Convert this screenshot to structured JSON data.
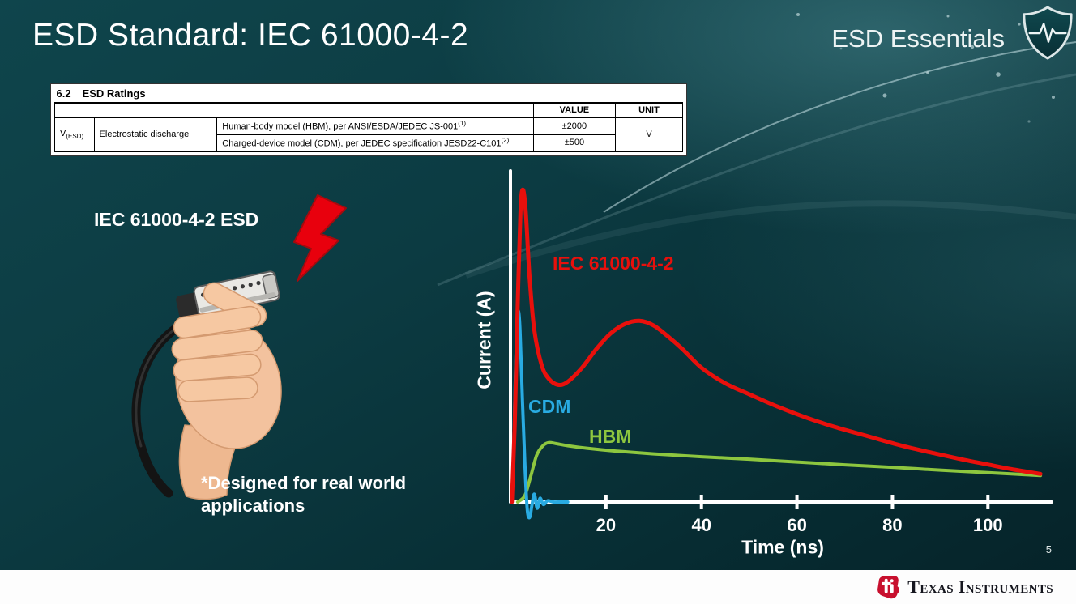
{
  "slide": {
    "title": "ESD Standard: IEC 61000-4-2",
    "brand": "ESD Essentials",
    "illustration_label": "IEC 61000-4-2 ESD",
    "footnote": "*Designed for real world applications",
    "page_number": "5",
    "footer_logo_text": "Texas Instruments"
  },
  "colors": {
    "background_teal": "#0b3940",
    "iec_red": "#e8100c",
    "cdm_blue": "#29abe2",
    "hbm_green": "#8dc63f",
    "ti_red": "#c8102e"
  },
  "table": {
    "section_number": "6.2",
    "section_title": "ESD Ratings",
    "value_header": "VALUE",
    "unit_header": "UNIT",
    "param_symbol": "V",
    "param_symbol_sub": "(ESD)",
    "param_name": "Electrostatic discharge",
    "rows": [
      {
        "description": "Human-body model (HBM), per ANSI/ESDA/JEDEC JS-001",
        "description_sup": "(1)",
        "value": "±2000"
      },
      {
        "description": "Charged-device model (CDM), per JEDEC specification JESD22-C101",
        "description_sup": "(2)",
        "value": "±500"
      }
    ],
    "unit": "V"
  },
  "chart_data": {
    "type": "line",
    "xlabel": "Time (ns)",
    "ylabel": "Current (A)",
    "xlim": [
      0,
      112
    ],
    "ylim": [
      0,
      1.05
    ],
    "x_ticks": [
      20,
      40,
      60,
      80,
      100
    ],
    "y_ticks": [],
    "y_units": "relative amplitude (y axis unlabeled)",
    "grid": false,
    "legend": "inline-labels",
    "series": [
      {
        "name": "IEC 61000-4-2",
        "color": "#e8100c",
        "line_width": 5,
        "points": [
          [
            0.3,
            0.0
          ],
          [
            0.9,
            0.25
          ],
          [
            1.5,
            0.62
          ],
          [
            2.1,
            0.93
          ],
          [
            2.6,
            1.0
          ],
          [
            3.2,
            0.93
          ],
          [
            4.0,
            0.72
          ],
          [
            5.0,
            0.55
          ],
          [
            6.5,
            0.44
          ],
          [
            8.0,
            0.395
          ],
          [
            10,
            0.375
          ],
          [
            12,
            0.385
          ],
          [
            15,
            0.43
          ],
          [
            18,
            0.49
          ],
          [
            21,
            0.54
          ],
          [
            24,
            0.57
          ],
          [
            27,
            0.58
          ],
          [
            30,
            0.565
          ],
          [
            33,
            0.53
          ],
          [
            36,
            0.49
          ],
          [
            40,
            0.43
          ],
          [
            45,
            0.38
          ],
          [
            50,
            0.345
          ],
          [
            56,
            0.305
          ],
          [
            62,
            0.27
          ],
          [
            68,
            0.24
          ],
          [
            75,
            0.21
          ],
          [
            82,
            0.18
          ],
          [
            89,
            0.155
          ],
          [
            95,
            0.135
          ],
          [
            100,
            0.12
          ],
          [
            105,
            0.105
          ],
          [
            111,
            0.09
          ]
        ]
      },
      {
        "name": "CDM",
        "color": "#29abe2",
        "line_width": 4,
        "points": [
          [
            0.2,
            0
          ],
          [
            0.6,
            0.13
          ],
          [
            1.0,
            0.38
          ],
          [
            1.4,
            0.58
          ],
          [
            1.7,
            0.61
          ],
          [
            2.0,
            0.55
          ],
          [
            2.5,
            0.33
          ],
          [
            3.0,
            0.13
          ],
          [
            3.5,
            -0.02
          ],
          [
            4.0,
            -0.05
          ],
          [
            4.5,
            -0.01
          ],
          [
            5.0,
            0.025
          ],
          [
            5.6,
            -0.02
          ],
          [
            6.2,
            0.012
          ],
          [
            6.9,
            -0.008
          ],
          [
            7.8,
            0.004
          ],
          [
            9,
            0
          ],
          [
            10.5,
            0
          ],
          [
            12,
            0
          ]
        ]
      },
      {
        "name": "HBM",
        "color": "#8dc63f",
        "line_width": 4,
        "points": [
          [
            1.5,
            0
          ],
          [
            3,
            0.02
          ],
          [
            4.2,
            0.08
          ],
          [
            5.5,
            0.15
          ],
          [
            6.8,
            0.18
          ],
          [
            8,
            0.19
          ],
          [
            9.5,
            0.187
          ],
          [
            12,
            0.18
          ],
          [
            16,
            0.172
          ],
          [
            22,
            0.163
          ],
          [
            30,
            0.154
          ],
          [
            40,
            0.145
          ],
          [
            50,
            0.137
          ],
          [
            60,
            0.128
          ],
          [
            70,
            0.119
          ],
          [
            80,
            0.111
          ],
          [
            90,
            0.102
          ],
          [
            100,
            0.094
          ],
          [
            106,
            0.089
          ],
          [
            111,
            0.085
          ]
        ]
      }
    ]
  }
}
